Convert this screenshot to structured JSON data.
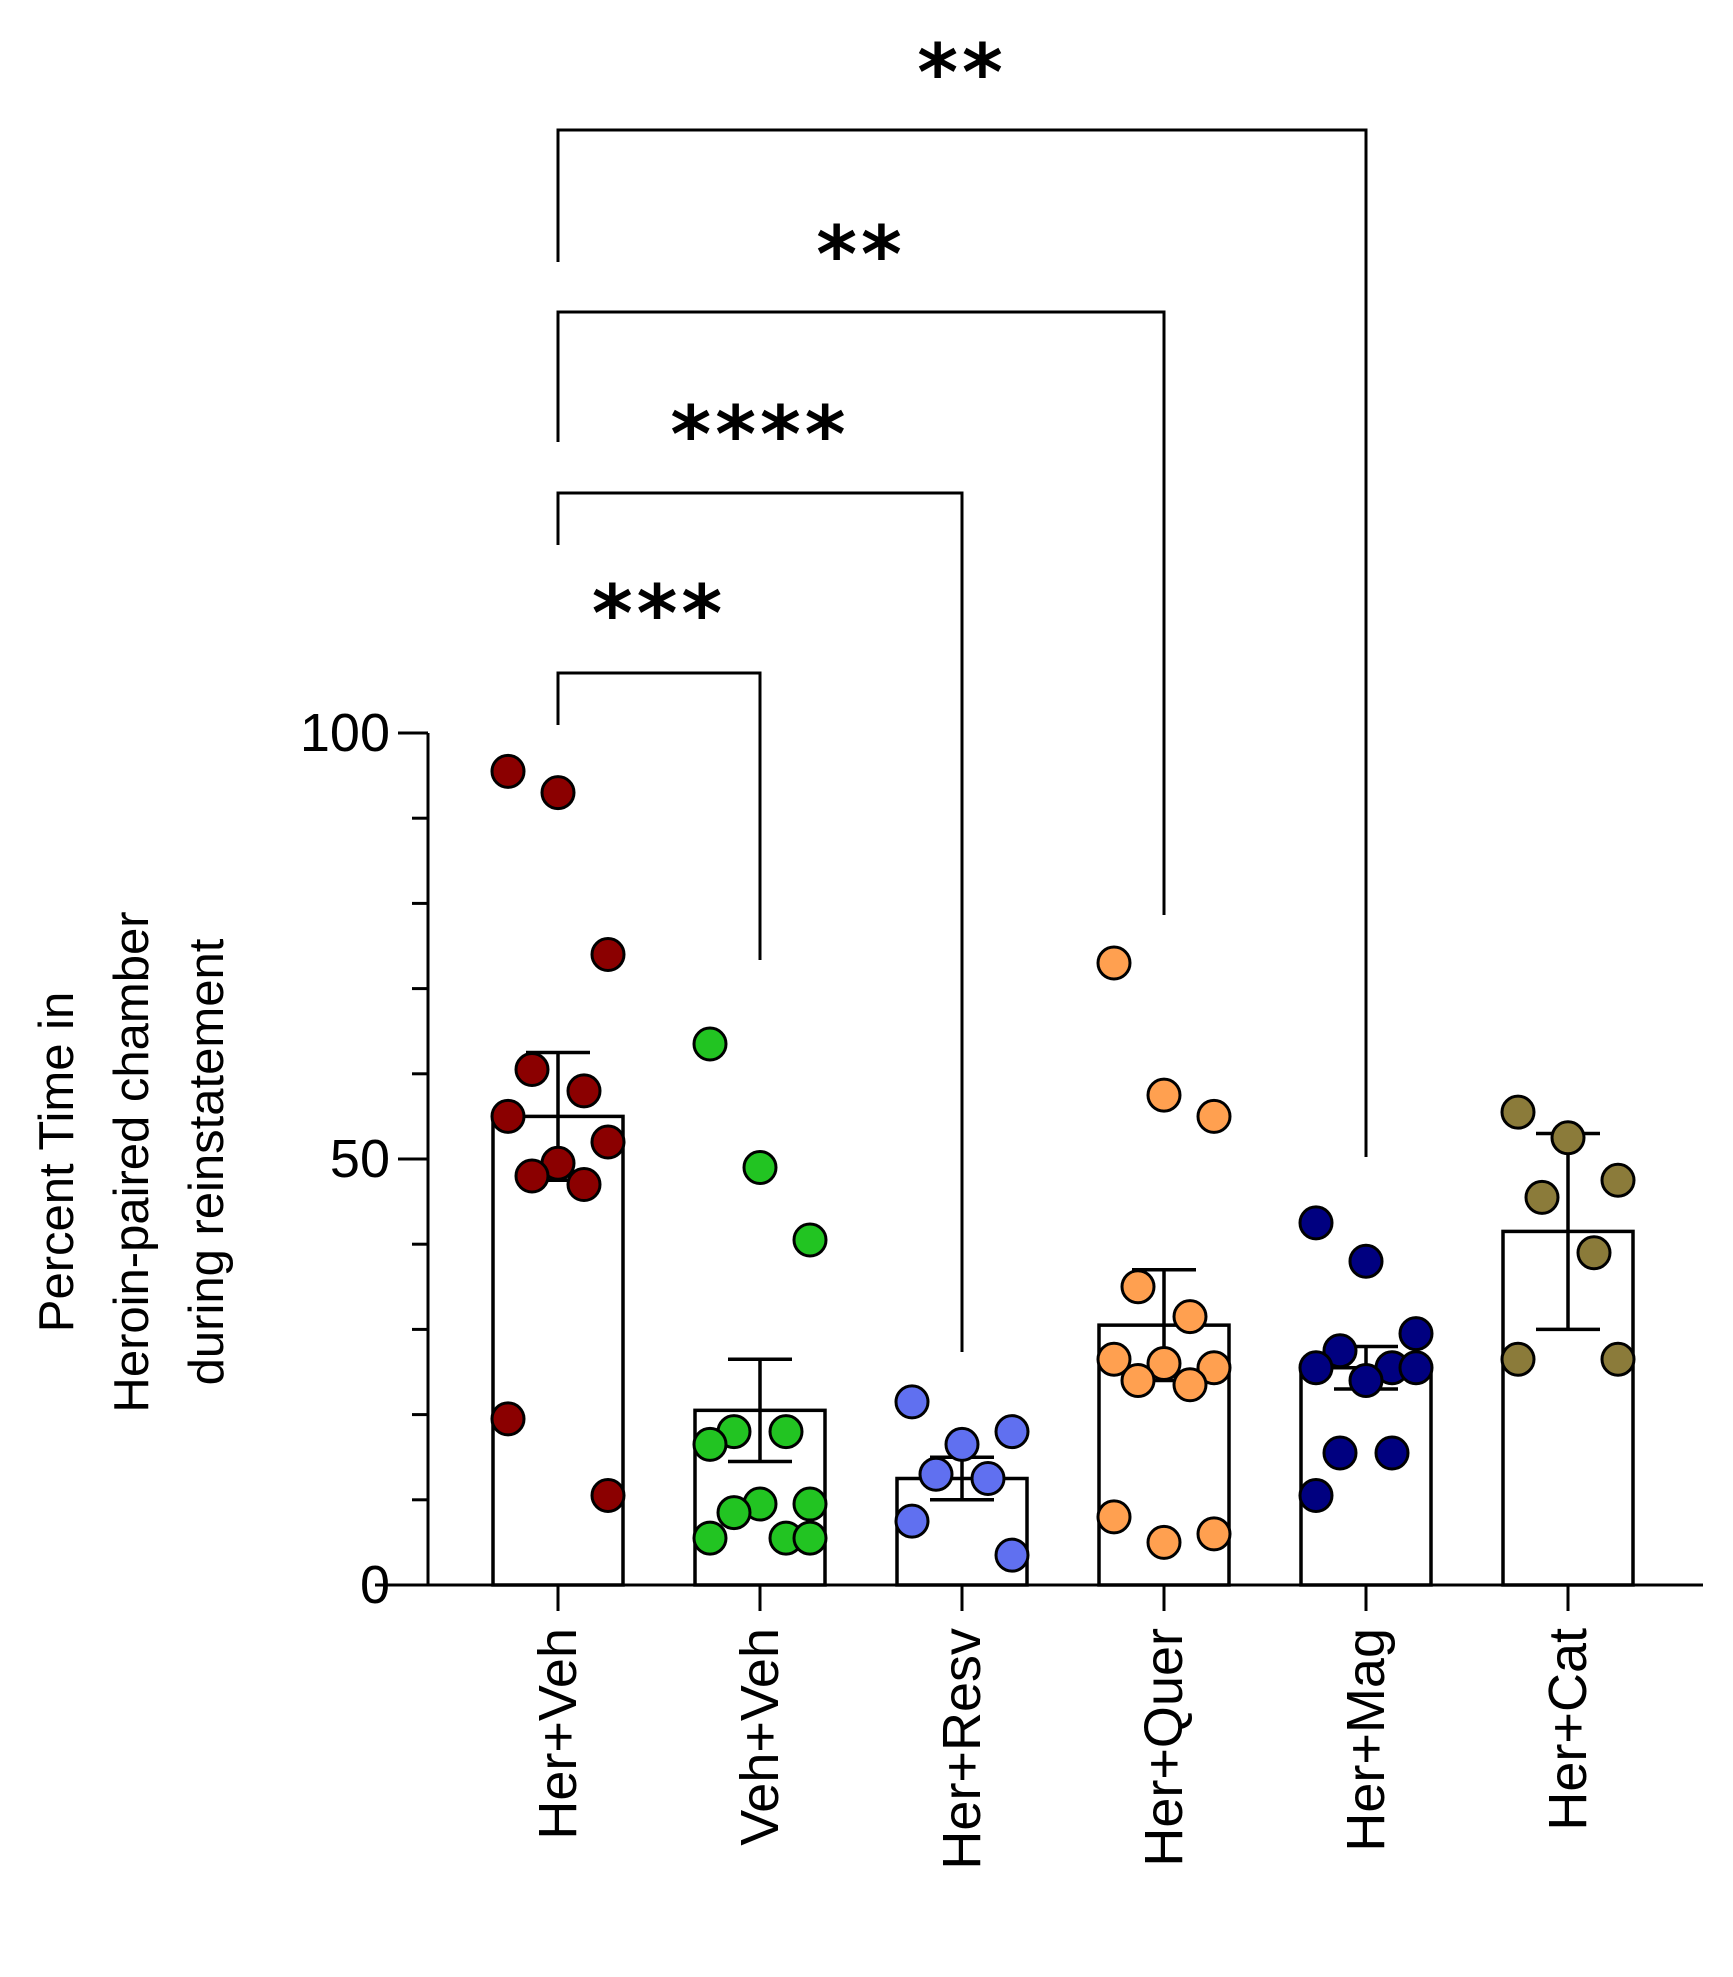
{
  "chart_data": {
    "type": "bar",
    "title": "",
    "ylabel": "Percent Time in Heroin-paired chamber during reinstatement",
    "ylabel_lines": [
      "Percent Time in",
      "Heroin-paired chamber",
      "during reinstatement"
    ],
    "ylim": [
      0,
      100
    ],
    "yticks": [
      "0",
      "50",
      "100"
    ],
    "categories": [
      "Her+Veh",
      "Veh+Veh",
      "Her+Resv",
      "Her+Quer",
      "Her+Mag",
      "Her+Cat"
    ],
    "colors": [
      "#8b0000",
      "#22c422",
      "#6070f0",
      "#ffa050",
      "#000080",
      "#8b7b3a"
    ],
    "means": [
      55,
      20.5,
      12.5,
      30.5,
      25.5,
      41.5
    ],
    "sem": [
      7.5,
      6,
      2.5,
      6.5,
      2.5,
      11.5
    ],
    "points": [
      [
        95.5,
        93,
        74,
        60.5,
        58,
        55,
        52,
        49.5,
        48,
        47,
        19.5,
        10.5
      ],
      [
        63.5,
        49,
        40.5,
        18,
        18,
        16.5,
        9.5,
        9.5,
        8.5,
        5.5,
        5.5,
        5.5
      ],
      [
        21.5,
        16.5,
        18,
        13,
        12.5,
        7.5,
        3.5
      ],
      [
        73,
        57.5,
        55,
        35,
        31.5,
        26.5,
        25.5,
        26,
        24,
        23.5,
        8,
        6,
        5
      ],
      [
        42.5,
        38,
        29.5,
        27.5,
        25.5,
        25.5,
        25.5,
        24,
        15.5,
        15.5,
        10.5
      ],
      [
        55.5,
        52.5,
        47.5,
        45.5,
        39,
        26.5,
        26.5
      ]
    ],
    "comparisons": [
      {
        "from": "Her+Veh",
        "to": "Veh+Veh",
        "label": "***"
      },
      {
        "from": "Her+Veh",
        "to": "Her+Resv",
        "label": "****"
      },
      {
        "from": "Her+Veh",
        "to": "Her+Quer",
        "label": "**"
      },
      {
        "from": "Her+Veh",
        "to": "Her+Mag",
        "label": "**"
      }
    ],
    "grid": false,
    "legend": "none"
  }
}
